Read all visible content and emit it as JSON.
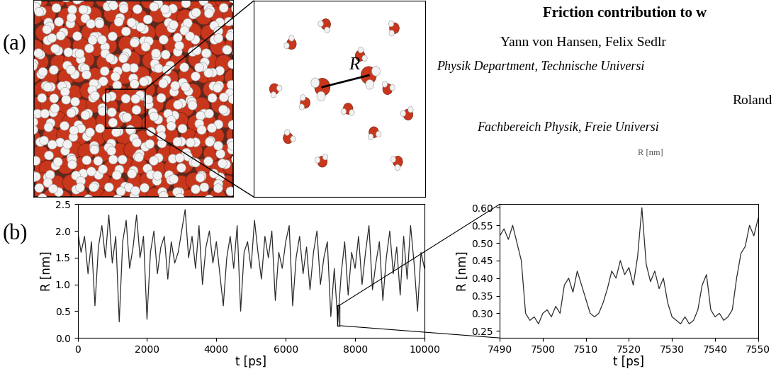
{
  "panel_labels": [
    "(a)",
    "(b)"
  ],
  "header": {
    "title": "Friction contribution to w",
    "authors_1": "Yann von Hansen, Felix Sedlr",
    "affiliation_1": "Physik Department, Technische Universi",
    "authors_2": "Roland",
    "affiliation_2": "Fachbereich Physik, Freie Universi",
    "stray_label": "R [nm]"
  },
  "snapshot": {
    "distance_label": "R"
  },
  "chart_data": [
    {
      "type": "line",
      "x_label": "t [ps]",
      "y_label": "R [nm]",
      "color": "#2b2b2b",
      "xlim": [
        0,
        10000
      ],
      "ylim": [
        0.0,
        2.5
      ],
      "xticks": [
        0,
        2000,
        4000,
        6000,
        8000,
        10000
      ],
      "yticks": [
        0.0,
        0.5,
        1.0,
        1.5,
        2.0,
        2.5
      ],
      "x": [
        0,
        100,
        200,
        300,
        400,
        500,
        600,
        700,
        800,
        900,
        1000,
        1100,
        1200,
        1300,
        1400,
        1500,
        1600,
        1700,
        1800,
        1900,
        2000,
        2100,
        2200,
        2300,
        2400,
        2500,
        2600,
        2700,
        2800,
        2900,
        3000,
        3100,
        3200,
        3300,
        3400,
        3500,
        3600,
        3700,
        3800,
        3900,
        4000,
        4100,
        4200,
        4300,
        4400,
        4500,
        4600,
        4700,
        4800,
        4900,
        5000,
        5100,
        5200,
        5300,
        5400,
        5500,
        5600,
        5700,
        5800,
        5900,
        6000,
        6100,
        6200,
        6300,
        6400,
        6500,
        6600,
        6700,
        6800,
        6900,
        7000,
        7100,
        7200,
        7300,
        7400,
        7500,
        7600,
        7700,
        7800,
        7900,
        8000,
        8100,
        8200,
        8300,
        8400,
        8500,
        8600,
        8700,
        8800,
        8900,
        9000,
        9100,
        9200,
        9300,
        9400,
        9500,
        9600,
        9700,
        9800,
        9900,
        10000
      ],
      "values": [
        2.0,
        1.6,
        1.9,
        1.2,
        1.8,
        0.6,
        1.7,
        2.1,
        1.5,
        2.3,
        1.4,
        1.9,
        0.3,
        1.8,
        2.2,
        1.3,
        1.7,
        2.3,
        1.5,
        1.9,
        0.35,
        1.6,
        2.0,
        1.2,
        1.7,
        1.9,
        1.1,
        1.8,
        1.4,
        1.6,
        2.0,
        2.4,
        1.5,
        1.9,
        1.3,
        2.1,
        1.0,
        1.7,
        2.0,
        1.4,
        1.8,
        1.2,
        0.6,
        1.5,
        1.9,
        1.3,
        2.1,
        0.5,
        1.6,
        1.8,
        1.3,
        2.2,
        1.6,
        1.1,
        1.9,
        1.5,
        2.0,
        0.7,
        1.6,
        1.3,
        1.8,
        2.1,
        0.6,
        1.5,
        1.9,
        1.2,
        1.7,
        0.9,
        1.6,
        2.0,
        1.0,
        1.5,
        1.8,
        0.4,
        1.3,
        0.3,
        1.2,
        1.8,
        0.8,
        1.6,
        1.3,
        1.9,
        1.0,
        1.6,
        2.1,
        0.9,
        1.4,
        1.8,
        0.7,
        1.5,
        2.0,
        1.2,
        1.7,
        0.8,
        1.9,
        1.1,
        2.1,
        1.4,
        0.5,
        1.6,
        1.3
      ]
    },
    {
      "type": "line",
      "x_label": "t [ps]",
      "y_label": "R [nm]",
      "color": "#2b2b2b",
      "xlim": [
        7490,
        7550
      ],
      "ylim": [
        0.23,
        0.61
      ],
      "xticks": [
        7490,
        7500,
        7510,
        7520,
        7530,
        7540,
        7550
      ],
      "yticks": [
        0.25,
        {
          "value": 0.3,
          "label": "0.30"
        },
        0.35,
        {
          "value": 0.4,
          "label": "0.40"
        },
        0.45,
        {
          "value": 0.5,
          "label": "0.50"
        },
        0.55,
        {
          "value": 0.6,
          "label": "0.60"
        }
      ],
      "x": [
        7490,
        7491,
        7492,
        7493,
        7494,
        7495,
        7496,
        7497,
        7498,
        7499,
        7500,
        7501,
        7502,
        7503,
        7504,
        7505,
        7506,
        7507,
        7508,
        7509,
        7510,
        7511,
        7512,
        7513,
        7514,
        7515,
        7516,
        7517,
        7518,
        7519,
        7520,
        7521,
        7522,
        7523,
        7524,
        7525,
        7526,
        7527,
        7528,
        7529,
        7530,
        7531,
        7532,
        7533,
        7534,
        7535,
        7536,
        7537,
        7538,
        7539,
        7540,
        7541,
        7542,
        7543,
        7544,
        7545,
        7546,
        7547,
        7548,
        7549,
        7550
      ],
      "values": [
        0.52,
        0.54,
        0.51,
        0.55,
        0.5,
        0.45,
        0.3,
        0.28,
        0.29,
        0.27,
        0.3,
        0.31,
        0.29,
        0.32,
        0.3,
        0.38,
        0.4,
        0.36,
        0.42,
        0.38,
        0.34,
        0.3,
        0.29,
        0.3,
        0.33,
        0.37,
        0.42,
        0.4,
        0.45,
        0.41,
        0.43,
        0.38,
        0.46,
        0.6,
        0.44,
        0.39,
        0.42,
        0.37,
        0.4,
        0.33,
        0.29,
        0.28,
        0.27,
        0.29,
        0.27,
        0.28,
        0.31,
        0.38,
        0.41,
        0.31,
        0.29,
        0.3,
        0.28,
        0.29,
        0.31,
        0.4,
        0.47,
        0.49,
        0.55,
        0.52,
        0.57
      ]
    }
  ]
}
